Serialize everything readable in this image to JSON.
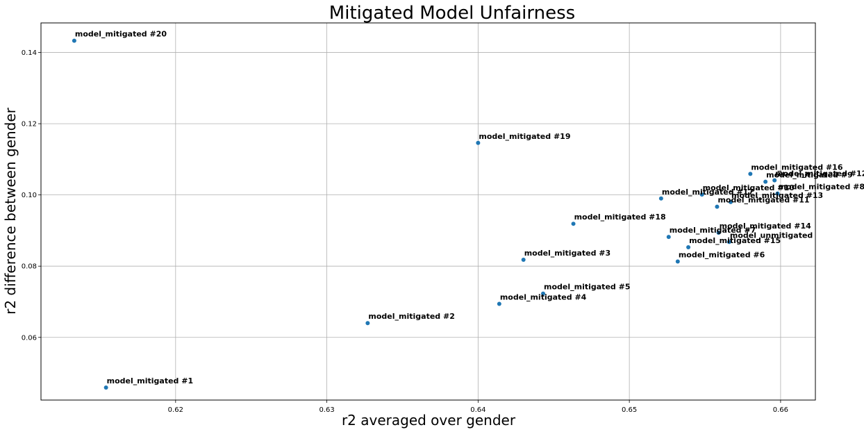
{
  "chart_data": {
    "type": "scatter",
    "title": "Mitigated Model Unfairness",
    "xlabel": "r2 averaged over gender",
    "ylabel": "r2 difference between gender",
    "xlim": [
      0.6111,
      0.6623
    ],
    "ylim": [
      0.0424,
      0.1483
    ],
    "xticks": [
      0.62,
      0.63,
      0.64,
      0.65,
      0.66
    ],
    "yticks": [
      0.06,
      0.08,
      0.1,
      0.12,
      0.14
    ],
    "xtick_labels": [
      "0.62",
      "0.63",
      "0.64",
      "0.65",
      "0.66"
    ],
    "ytick_labels": [
      "0.06",
      "0.08",
      "0.10",
      "0.12",
      "0.14"
    ],
    "grid": true,
    "point_color": "#1f77b4",
    "points": [
      {
        "label": "model_mitigated #20",
        "x": 0.6133,
        "y": 0.1433
      },
      {
        "label": "model_mitigated #1",
        "x": 0.6154,
        "y": 0.0459
      },
      {
        "label": "model_mitigated #2",
        "x": 0.6327,
        "y": 0.064
      },
      {
        "label": "model_mitigated #19",
        "x": 0.64,
        "y": 0.1146
      },
      {
        "label": "model_mitigated #4",
        "x": 0.6414,
        "y": 0.0694
      },
      {
        "label": "model_mitigated #3",
        "x": 0.643,
        "y": 0.0818
      },
      {
        "label": "model_mitigated #5",
        "x": 0.6443,
        "y": 0.0723
      },
      {
        "label": "model_mitigated #18",
        "x": 0.6463,
        "y": 0.0919
      },
      {
        "label": "model_mitigated #17",
        "x": 0.6521,
        "y": 0.099
      },
      {
        "label": "model_mitigated #7",
        "x": 0.6526,
        "y": 0.0882
      },
      {
        "label": "model_mitigated #6",
        "x": 0.6532,
        "y": 0.0813
      },
      {
        "label": "model_mitigated #15",
        "x": 0.6539,
        "y": 0.0853
      },
      {
        "label": "model_mitigated #10",
        "x": 0.6548,
        "y": 0.1001
      },
      {
        "label": "model_mitigated #11",
        "x": 0.6558,
        "y": 0.0967
      },
      {
        "label": "model_mitigated #14",
        "x": 0.6559,
        "y": 0.0894
      },
      {
        "label": "model_unmitigated",
        "x": 0.6566,
        "y": 0.0868
      },
      {
        "label": "model_mitigated #13",
        "x": 0.6567,
        "y": 0.098
      },
      {
        "label": "model_mitigated #16",
        "x": 0.658,
        "y": 0.1059
      },
      {
        "label": "model_mitigated #9",
        "x": 0.659,
        "y": 0.1037
      },
      {
        "label": "model_mitigated #12",
        "x": 0.6596,
        "y": 0.1041
      },
      {
        "label": "model_mitigated #8",
        "x": 0.6598,
        "y": 0.1004
      }
    ]
  }
}
